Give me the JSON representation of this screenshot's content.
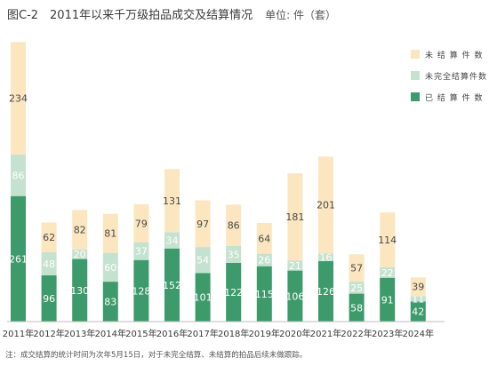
{
  "chart_data": {
    "type": "bar",
    "stacked": true,
    "title": "图C-2　2011年以来千万级拍品成交及结算情况",
    "unit": "单位: 件（套）",
    "categories": [
      "2011年",
      "2012年",
      "2013年",
      "2014年",
      "2015年",
      "2016年",
      "2017年",
      "2018年",
      "2019年",
      "2020年",
      "2021年",
      "2022年",
      "2023年",
      "2024年"
    ],
    "series": [
      {
        "name": "已 结 算 件 数",
        "color": "#3d9a6a",
        "values": [
          261,
          96,
          130,
          83,
          128,
          152,
          101,
          122,
          115,
          106,
          126,
          58,
          91,
          42
        ]
      },
      {
        "name": "未完全结算件数",
        "color": "#c4e2cf",
        "values": [
          86,
          48,
          20,
          60,
          37,
          34,
          54,
          35,
          26,
          21,
          16,
          25,
          22,
          11
        ]
      },
      {
        "name": "未 结 算 件 数",
        "color": "#fbe6bf",
        "values": [
          234,
          62,
          82,
          81,
          79,
          131,
          97,
          86,
          64,
          181,
          201,
          57,
          114,
          39
        ]
      }
    ],
    "legend_order": [
      "未 结 算 件 数",
      "未完全结算件数",
      "已 结 算 件 数"
    ],
    "legend_position": "top-right",
    "grid": false,
    "note": "注：成交结算的统计时间为次年5月15日，对于未完全结算、未结算的拍品后续未做跟踪。"
  }
}
